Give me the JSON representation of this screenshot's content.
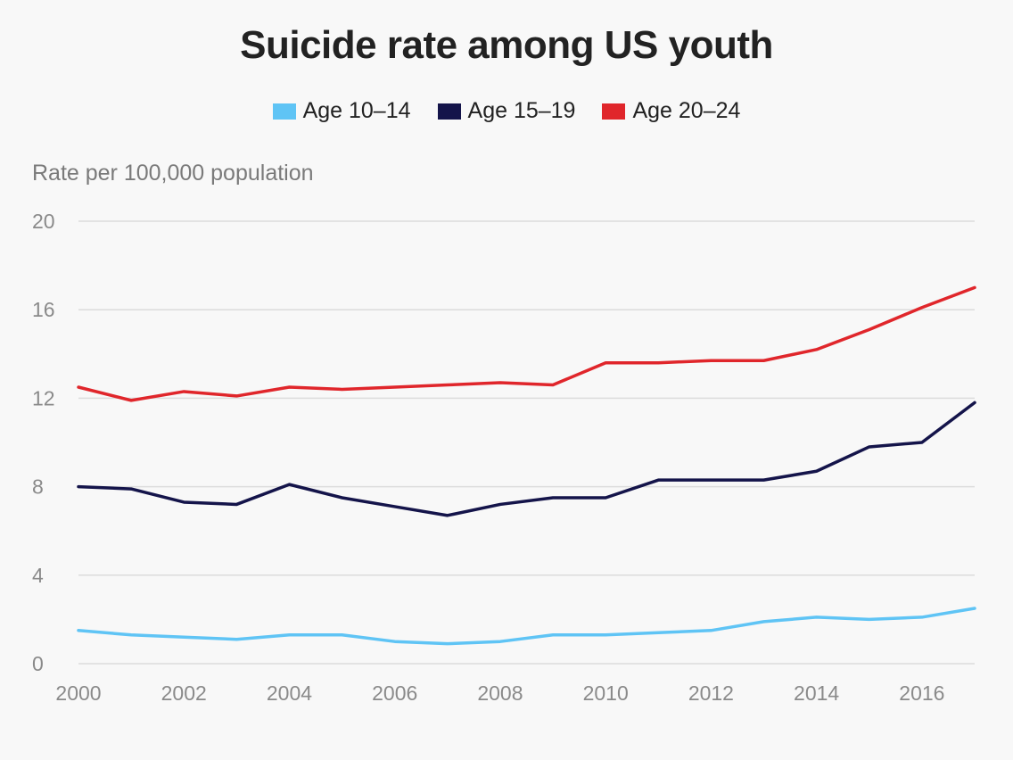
{
  "chart_data": {
    "type": "line",
    "title": "Suicide rate among US youth",
    "ylabel": "Rate per 100,000 population",
    "xlabel": "",
    "x": [
      2000,
      2001,
      2002,
      2003,
      2004,
      2005,
      2006,
      2007,
      2008,
      2009,
      2010,
      2011,
      2012,
      2013,
      2014,
      2015,
      2016,
      2017
    ],
    "xticks": [
      "2000",
      "2002",
      "2004",
      "2006",
      "2008",
      "2010",
      "2012",
      "2014",
      "2016"
    ],
    "yticks": [
      "0",
      "4",
      "8",
      "12",
      "16",
      "20"
    ],
    "ylim": [
      0,
      20
    ],
    "xlim": [
      2000,
      2017
    ],
    "grid": true,
    "legend_position": "top-center",
    "series": [
      {
        "name": "Age 10–14",
        "color": "#5fc4f5",
        "values": [
          1.5,
          1.3,
          1.2,
          1.1,
          1.3,
          1.3,
          1.0,
          0.9,
          1.0,
          1.3,
          1.3,
          1.4,
          1.5,
          1.9,
          2.1,
          2.0,
          2.1,
          2.5
        ]
      },
      {
        "name": "Age 15–19",
        "color": "#14144a",
        "values": [
          8.0,
          7.9,
          7.3,
          7.2,
          8.1,
          7.5,
          7.1,
          6.7,
          7.2,
          7.5,
          7.5,
          8.3,
          8.3,
          8.3,
          8.7,
          9.8,
          10.0,
          11.8
        ]
      },
      {
        "name": "Age 20–24",
        "color": "#e0262b",
        "values": [
          12.5,
          11.9,
          12.3,
          12.1,
          12.5,
          12.4,
          12.5,
          12.6,
          12.7,
          12.6,
          13.6,
          13.6,
          13.7,
          13.7,
          14.2,
          15.1,
          16.1,
          17.0
        ]
      }
    ]
  }
}
